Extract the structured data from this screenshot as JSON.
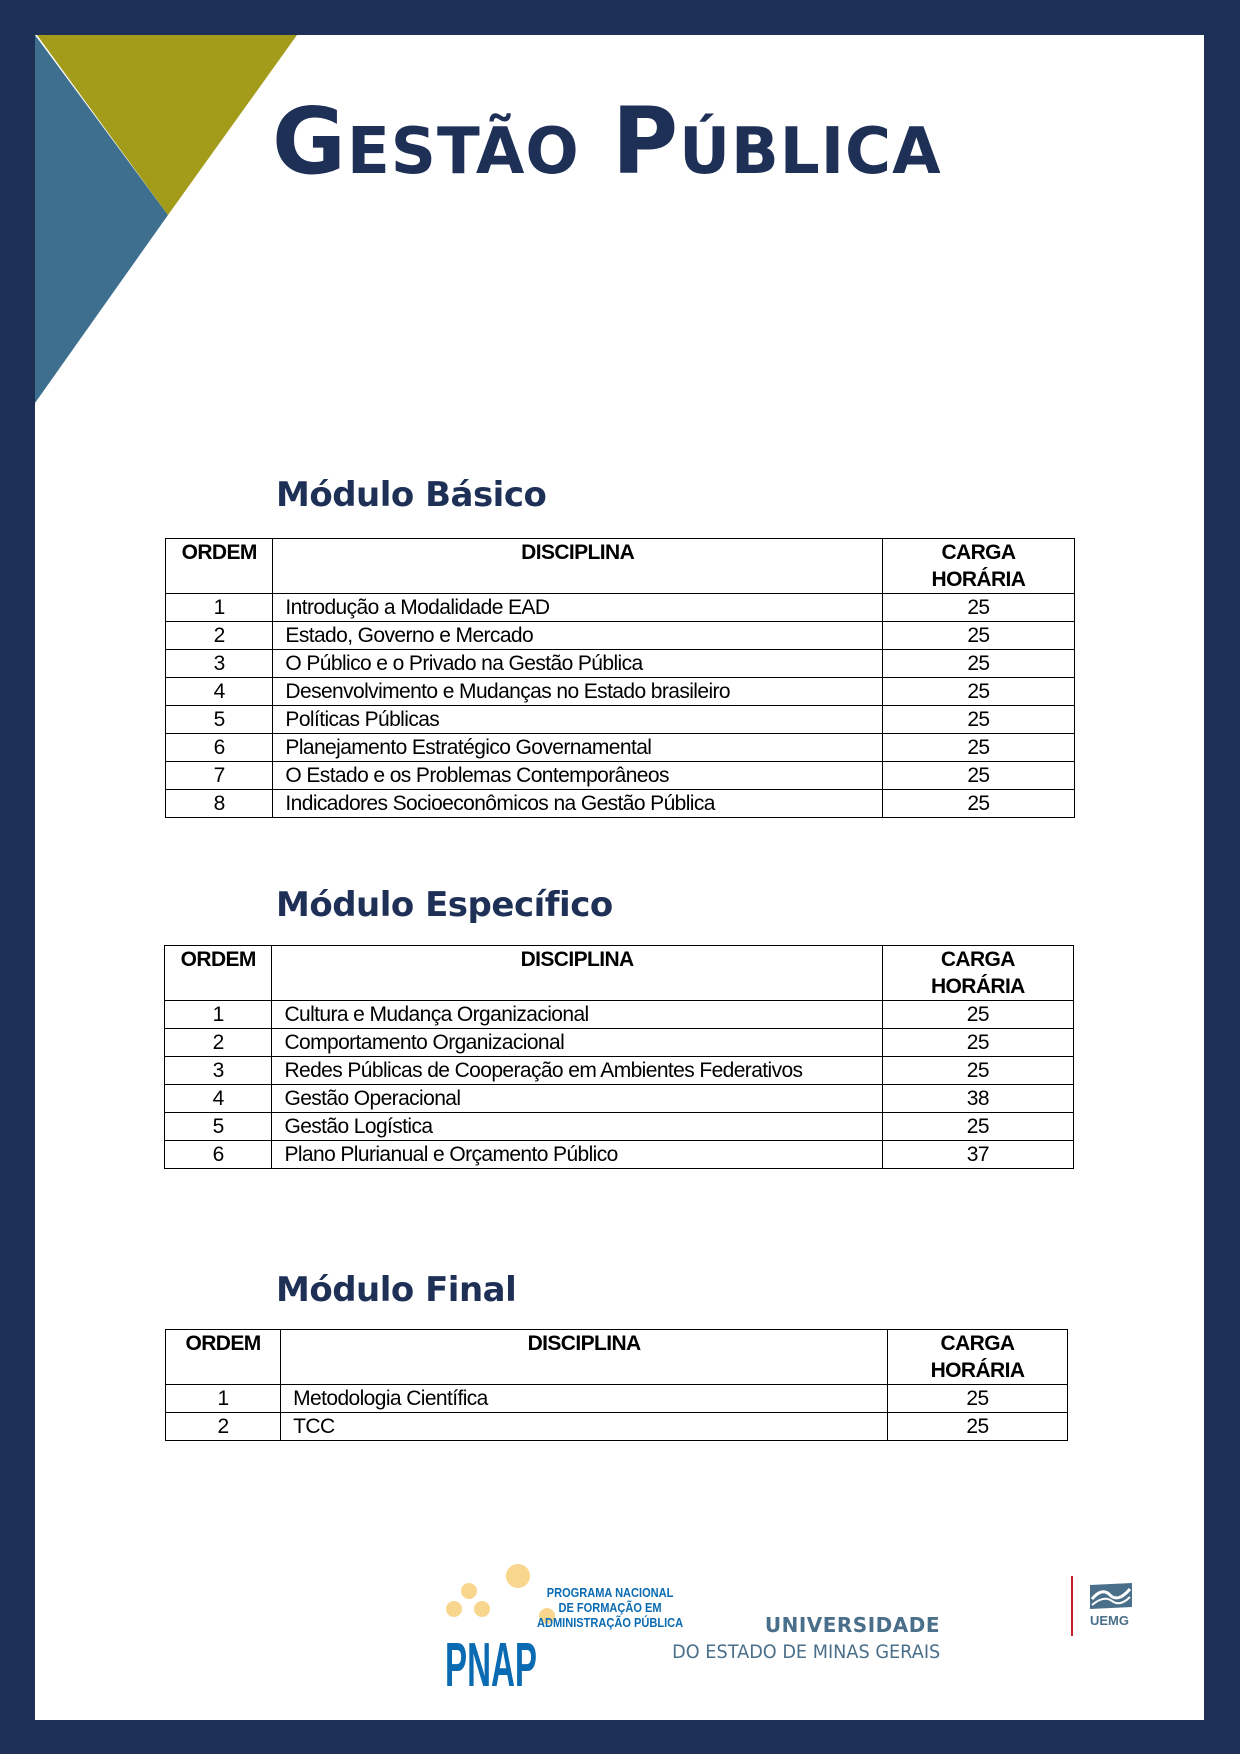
{
  "colors": {
    "border": "#1f3057",
    "olive": "#a39b1a",
    "steel_blue": "#3e6f8e",
    "title": "#1f3057",
    "pnap_blue": "#0a6bb3",
    "pnap_yellow": "#f9d68e",
    "uemg": "#4a6f8a",
    "uemg_red": "#c8202a"
  },
  "title": "Gestão Pública",
  "columns": {
    "order": "ORDEM",
    "discipline": "DISCIPLINA",
    "hours_1": "CARGA",
    "hours_2": "HORÁRIA"
  },
  "modules": [
    {
      "heading": "Módulo Básico",
      "rows": [
        {
          "order": "1",
          "discipline": "Introdução a Modalidade EAD",
          "hours": "25"
        },
        {
          "order": "2",
          "discipline": "Estado, Governo e Mercado",
          "hours": "25"
        },
        {
          "order": "3",
          "discipline": "O Público e o Privado na Gestão Pública",
          "hours": "25"
        },
        {
          "order": "4",
          "discipline": "Desenvolvimento e Mudanças no Estado brasileiro",
          "hours": "25"
        },
        {
          "order": "5",
          "discipline": "Políticas Públicas",
          "hours": "25"
        },
        {
          "order": "6",
          "discipline": "Planejamento Estratégico Governamental",
          "hours": "25"
        },
        {
          "order": "7",
          "discipline": "O Estado e os Problemas Contemporâneos",
          "hours": "25"
        },
        {
          "order": "8",
          "discipline": "Indicadores Socioeconômicos na Gestão Pública",
          "hours": "25"
        }
      ]
    },
    {
      "heading": "Módulo Específico",
      "rows": [
        {
          "order": "1",
          "discipline": "Cultura e Mudança Organizacional",
          "hours": "25"
        },
        {
          "order": "2",
          "discipline": "Comportamento Organizacional",
          "hours": "25"
        },
        {
          "order": "3",
          "discipline": "Redes Públicas de Cooperação em Ambientes Federativos",
          "hours": "25"
        },
        {
          "order": "4",
          "discipline": "Gestão Operacional",
          "hours": "38"
        },
        {
          "order": "5",
          "discipline": "Gestão Logística",
          "hours": "25"
        },
        {
          "order": "6",
          "discipline": "Plano Plurianual e Orçamento Público",
          "hours": "37"
        }
      ]
    },
    {
      "heading": "Módulo Final",
      "rows": [
        {
          "order": "1",
          "discipline": "Metodologia Científica",
          "hours": "25"
        },
        {
          "order": "2",
          "discipline": "TCC",
          "hours": "25"
        }
      ]
    }
  ],
  "footer": {
    "pnap_logo": "PNAP",
    "pnap_line1": "PROGRAMA NACIONAL",
    "pnap_line2": "DE FORMAÇÃO EM",
    "pnap_line3": "ADMINISTRAÇÃO PÚBLICA",
    "uemg_line1": "UNIVERSIDADE",
    "uemg_line2": "DO ESTADO DE MINAS GERAIS",
    "uemg_abbr": "UEMG"
  }
}
